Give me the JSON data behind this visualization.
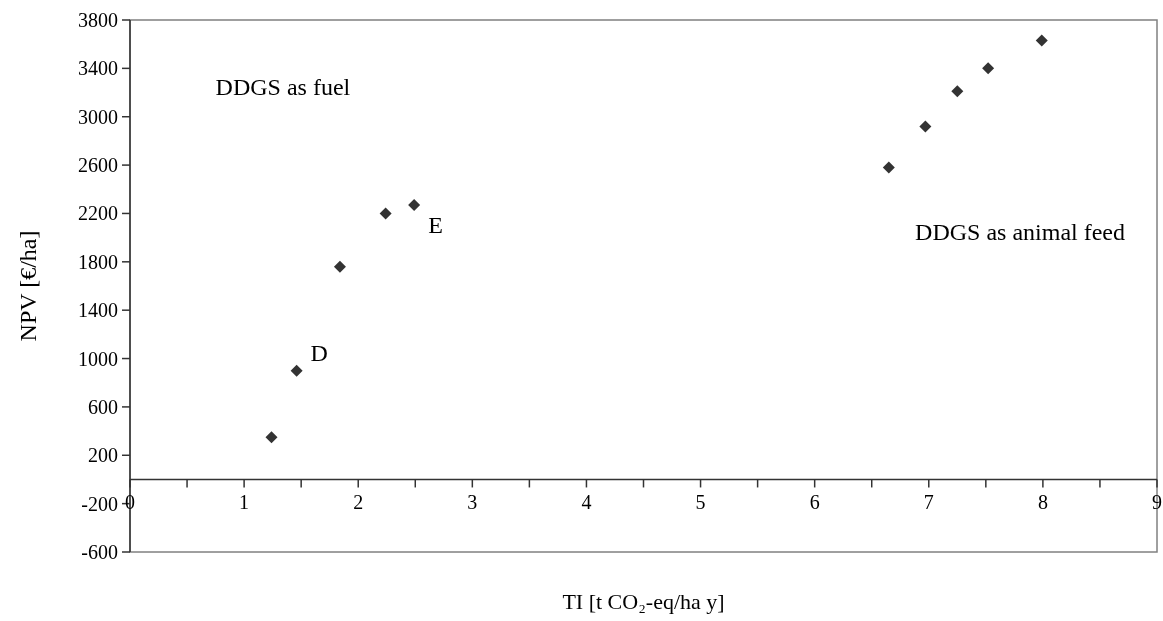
{
  "chart_data": {
    "type": "scatter",
    "xlabel": "TI [t CO₂-eq/ha y]",
    "ylabel": "NPV [€/ha]",
    "x": [
      1.24,
      1.46,
      1.84,
      2.24,
      2.49,
      6.65,
      6.97,
      7.25,
      7.52,
      7.99
    ],
    "values": [
      350,
      900,
      1760,
      2200,
      2270,
      2580,
      2920,
      3210,
      3400,
      3630
    ],
    "color": "#333333",
    "marker": "diamond",
    "xlim": [
      0,
      9
    ],
    "xticks": [
      0,
      {
        "value": 0.5,
        "label": null
      },
      1,
      {
        "value": 1.5,
        "label": null
      },
      2,
      {
        "value": 2.5,
        "label": null
      },
      3,
      {
        "value": 3.5,
        "label": null
      },
      4,
      {
        "value": 4.5,
        "label": null
      },
      5,
      {
        "value": 5.5,
        "label": null
      },
      6,
      {
        "value": 6.5,
        "label": null
      },
      7,
      {
        "value": 7.5,
        "label": null
      },
      8,
      {
        "value": 8.5,
        "label": null
      },
      9
    ],
    "ylim": [
      -600,
      3800
    ],
    "yticks": [
      -600,
      -200,
      200,
      600,
      1000,
      1400,
      1800,
      2200,
      2600,
      3000,
      3400,
      3800
    ],
    "annotations": [
      "DDGS as fuel",
      "DDGS as animal feed",
      {
        "text": "D",
        "x": 1.46,
        "y": 900
      },
      {
        "text": "E",
        "x": 2.49,
        "y": 2270
      }
    ]
  }
}
